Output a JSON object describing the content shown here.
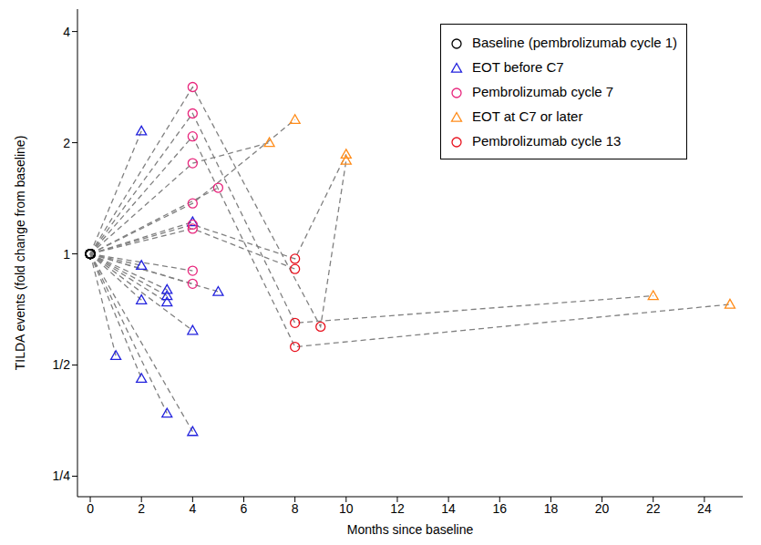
{
  "chart_data": {
    "type": "line",
    "log": "y",
    "grid": false,
    "legend": "upper right",
    "x_label": "Months since baseline",
    "y_label": "TILDA events (fold change from baseline)",
    "xlim": [
      -0.5,
      25.5
    ],
    "xticks": [
      0,
      2,
      4,
      6,
      8,
      10,
      12,
      14,
      16,
      18,
      20,
      22,
      24
    ],
    "ylim": [
      0.22,
      4.6
    ],
    "yticks": [
      {
        "value": 0.25,
        "label": "1/4"
      },
      {
        "value": 0.5,
        "label": "1/2"
      },
      1,
      2,
      4
    ],
    "series": [
      {
        "name": "Baseline (pembrolizumab cycle 1)",
        "color": "#000000",
        "marker": "circle"
      },
      {
        "name": "EOT before C7",
        "color": "#2222dd",
        "marker": "triangle"
      },
      {
        "name": "Pembrolizumab cycle 7",
        "color": "#e8257c",
        "marker": "circle"
      },
      {
        "name": "EOT at C7 or later",
        "color": "#ff8c1a",
        "marker": "triangle"
      },
      {
        "name": "Pembrolizumab cycle 13",
        "color": "#e8111d",
        "marker": "circle"
      }
    ],
    "lines": {
      "color": "#808080",
      "line_style": "dashed",
      "trajectories": [
        {
          "x": [
            0,
            2
          ],
          "values": [
            1,
            2.15
          ],
          "groups": [
            "Baseline (pembrolizumab cycle 1)",
            "EOT before C7"
          ]
        },
        {
          "x": [
            0,
            1
          ],
          "values": [
            1,
            0.53
          ],
          "groups": [
            "Baseline (pembrolizumab cycle 1)",
            "EOT before C7"
          ]
        },
        {
          "x": [
            0,
            2
          ],
          "values": [
            1,
            0.93
          ],
          "groups": [
            "Baseline (pembrolizumab cycle 1)",
            "EOT before C7"
          ]
        },
        {
          "x": [
            0,
            2
          ],
          "values": [
            1,
            0.75
          ],
          "groups": [
            "Baseline (pembrolizumab cycle 1)",
            "EOT before C7"
          ]
        },
        {
          "x": [
            0,
            2
          ],
          "values": [
            1,
            0.46
          ],
          "groups": [
            "Baseline (pembrolizumab cycle 1)",
            "EOT before C7"
          ]
        },
        {
          "x": [
            0,
            3
          ],
          "values": [
            1,
            0.8
          ],
          "groups": [
            "Baseline (pembrolizumab cycle 1)",
            "EOT before C7"
          ]
        },
        {
          "x": [
            0,
            3
          ],
          "values": [
            1,
            0.77
          ],
          "groups": [
            "Baseline (pembrolizumab cycle 1)",
            "EOT before C7"
          ]
        },
        {
          "x": [
            0,
            3
          ],
          "values": [
            1,
            0.74
          ],
          "groups": [
            "Baseline (pembrolizumab cycle 1)",
            "EOT before C7"
          ]
        },
        {
          "x": [
            0,
            3
          ],
          "values": [
            1,
            0.37
          ],
          "groups": [
            "Baseline (pembrolizumab cycle 1)",
            "EOT before C7"
          ]
        },
        {
          "x": [
            0,
            4
          ],
          "values": [
            1,
            1.22
          ],
          "groups": [
            "Baseline (pembrolizumab cycle 1)",
            "EOT before C7"
          ]
        },
        {
          "x": [
            0,
            4
          ],
          "values": [
            1,
            0.62
          ],
          "groups": [
            "Baseline (pembrolizumab cycle 1)",
            "EOT before C7"
          ]
        },
        {
          "x": [
            0,
            4
          ],
          "values": [
            1,
            0.33
          ],
          "groups": [
            "Baseline (pembrolizumab cycle 1)",
            "EOT before C7"
          ]
        },
        {
          "x": [
            0,
            5
          ],
          "values": [
            1,
            0.79
          ],
          "groups": [
            "Baseline (pembrolizumab cycle 1)",
            "EOT before C7"
          ]
        },
        {
          "x": [
            0,
            4
          ],
          "values": [
            1,
            0.9
          ],
          "groups": [
            "Baseline (pembrolizumab cycle 1)",
            "Pembrolizumab cycle 7"
          ]
        },
        {
          "x": [
            0,
            4
          ],
          "values": [
            1,
            0.83
          ],
          "groups": [
            "Baseline (pembrolizumab cycle 1)",
            "Pembrolizumab cycle 7"
          ]
        },
        {
          "x": [
            0,
            5
          ],
          "values": [
            1,
            1.51
          ],
          "groups": [
            "Baseline (pembrolizumab cycle 1)",
            "Pembrolizumab cycle 7"
          ]
        },
        {
          "x": [
            0,
            4,
            7
          ],
          "values": [
            1,
            1.76,
            2.0
          ],
          "groups": [
            "Baseline (pembrolizumab cycle 1)",
            "Pembrolizumab cycle 7",
            "EOT at C7 or later"
          ]
        },
        {
          "x": [
            0,
            4,
            8
          ],
          "values": [
            1,
            1.37,
            2.31
          ],
          "groups": [
            "Baseline (pembrolizumab cycle 1)",
            "Pembrolizumab cycle 7",
            "EOT at C7 or later"
          ]
        },
        {
          "x": [
            0,
            4,
            9,
            10
          ],
          "values": [
            1,
            2.83,
            0.635,
            1.79
          ],
          "groups": [
            "Baseline (pembrolizumab cycle 1)",
            "Pembrolizumab cycle 7",
            "Pembrolizumab cycle 13",
            "EOT at C7 or later"
          ]
        },
        {
          "x": [
            0,
            4,
            8,
            22
          ],
          "values": [
            1,
            2.4,
            0.65,
            0.77
          ],
          "groups": [
            "Baseline (pembrolizumab cycle 1)",
            "Pembrolizumab cycle 7",
            "Pembrolizumab cycle 13",
            "EOT at C7 or later"
          ]
        },
        {
          "x": [
            0,
            4,
            8,
            25
          ],
          "values": [
            1,
            2.08,
            0.56,
            0.73
          ],
          "groups": [
            "Baseline (pembrolizumab cycle 1)",
            "Pembrolizumab cycle 7",
            "Pembrolizumab cycle 13",
            "EOT at C7 or later"
          ]
        },
        {
          "x": [
            0,
            4,
            8,
            10
          ],
          "values": [
            1,
            1.2,
            0.97,
            1.86
          ],
          "groups": [
            "Baseline (pembrolizumab cycle 1)",
            "Pembrolizumab cycle 7",
            "Pembrolizumab cycle 13",
            "EOT at C7 or later"
          ]
        },
        {
          "x": [
            0,
            4,
            8
          ],
          "values": [
            1,
            1.17,
            0.91
          ],
          "groups": [
            "Baseline (pembrolizumab cycle 1)",
            "Pembrolizumab cycle 7",
            "Pembrolizumab cycle 13"
          ]
        }
      ]
    }
  }
}
